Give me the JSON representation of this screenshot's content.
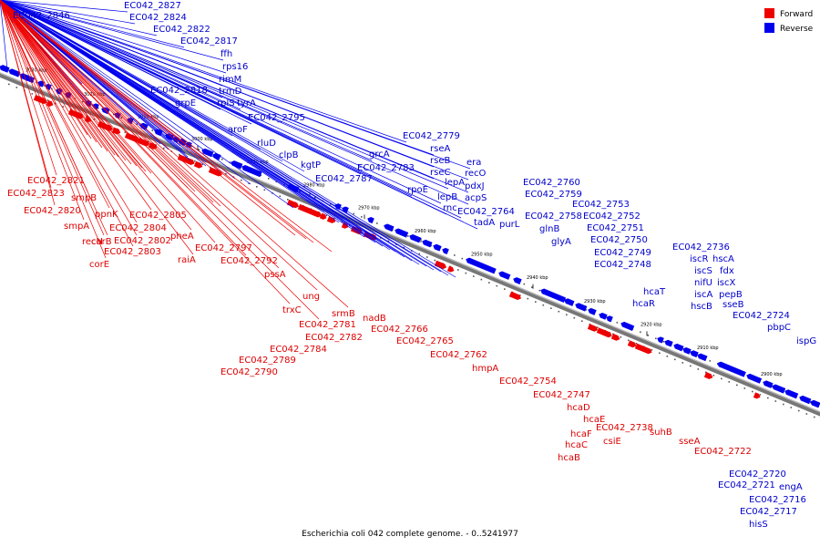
{
  "legend": [
    "Forward",
    "Reverse"
  ],
  "caption": "Escherichia coli 042 complete genome. - 0..5241977",
  "colors": {
    "forward": "#ee0000",
    "reverse": "#0000ee",
    "forward_label": "#dd0000",
    "reverse_label": "#0000cc"
  },
  "scale_labels": [
    "3030 kbp",
    "3020 kbp",
    "3010 kbp",
    "3000 kbp",
    "2990 kbp",
    "2980 kbp",
    "2970 kbp",
    "2960 kbp",
    "2950 kbp",
    "2940 kbp",
    "2930 kbp",
    "2920 kbp",
    "2910 kbp",
    "2900 kbp"
  ],
  "reverse_genes": [
    "EC042_2846",
    "EC042_2827",
    "EC042_2824",
    "EC042_2822",
    "EC042_2817",
    "ffh",
    "rps16",
    "rimM",
    "trmD",
    "rplS",
    "EC042_2818",
    "grpE",
    "tyrA",
    "EC042_2795",
    "aroF",
    "rluD",
    "clpB",
    "kgtP",
    "grcA",
    "EC042_2783",
    "EC042_2787",
    "EC042_2779",
    "rseA",
    "rseB",
    "rseC",
    "rpoE",
    "lepA",
    "lepB",
    "rnc",
    "era",
    "recO",
    "pdxJ",
    "acpS",
    "EC042_2764",
    "tadA",
    "purL",
    "EC042_2760",
    "EC042_2759",
    "EC042_2758",
    "glnB",
    "glyA",
    "EC042_2753",
    "EC042_2752",
    "EC042_2751",
    "EC042_2750",
    "EC042_2749",
    "EC042_2748",
    "hcaT",
    "hcaR",
    "EC042_2736",
    "iscR",
    "hscA",
    "iscS",
    "fdx",
    "nifU",
    "iscX",
    "iscA",
    "pepB",
    "hscB",
    "sseB",
    "EC042_2724",
    "pbpC",
    "ispG",
    "EC042_2720",
    "EC042_2721",
    "engA",
    "EC042_2716",
    "EC042_2717",
    "hisS"
  ],
  "forward_genes": [
    "EC042_2821",
    "EC042_2823",
    "EC042_2820",
    "smpB",
    "smpA",
    "ppnK",
    "recN",
    "corB",
    "corE",
    "EC042_2805",
    "EC042_2804",
    "EC042_2802",
    "EC042_2803",
    "pheA",
    "raiA",
    "EC042_2797",
    "EC042_2792",
    "pssA",
    "ung",
    "trxC",
    "srmB",
    "EC042_2781",
    "EC042_2782",
    "EC042_2784",
    "EC042_2789",
    "EC042_2790",
    "nadB",
    "EC042_2766",
    "EC042_2765",
    "EC042_2762",
    "hmpA",
    "EC042_2754",
    "EC042_2747",
    "hcaD",
    "hcaE",
    "hcaF",
    "hcaC",
    "hcaB",
    "EC042_2738",
    "csiE",
    "suhB",
    "sseA",
    "EC042_2722"
  ]
}
